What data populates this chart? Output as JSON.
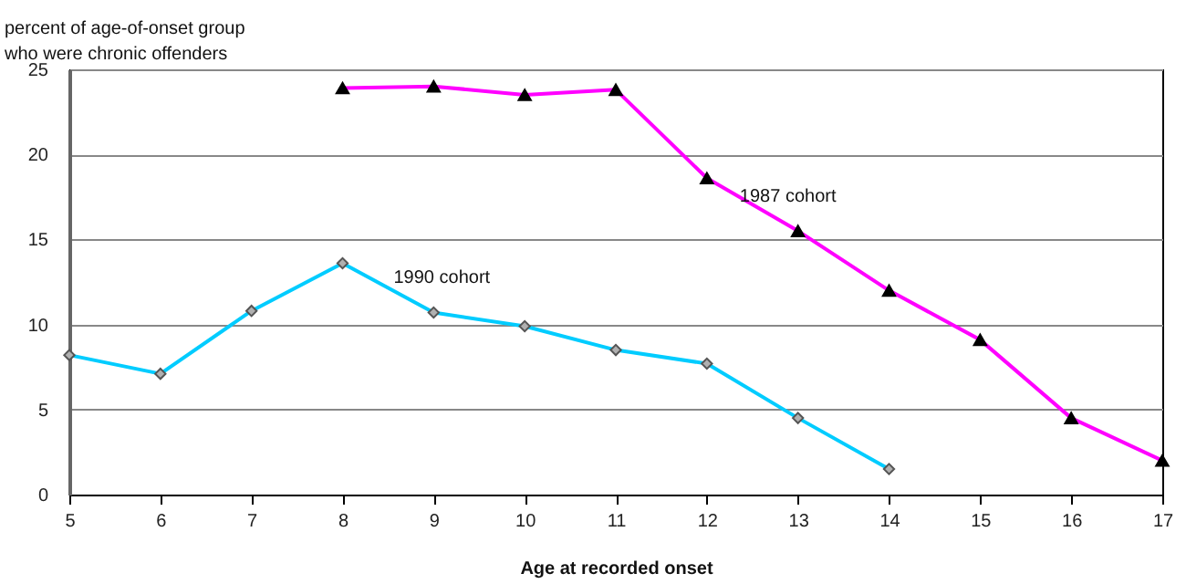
{
  "chart_data": {
    "type": "line",
    "xlabel": "Age at recorded onset",
    "ylabel": "percent of age-of-onset group\nwho were chronic offenders",
    "xlim": [
      5,
      17
    ],
    "xticks": [
      5,
      6,
      7,
      8,
      9,
      10,
      11,
      12,
      13,
      14,
      15,
      16,
      17
    ],
    "ylim": [
      0,
      25
    ],
    "yticks": [
      0,
      5,
      10,
      15,
      20,
      25
    ],
    "grid": "y",
    "series": [
      {
        "name": "1990 cohort",
        "color": "#00ccff",
        "marker": "diamond",
        "x": [
          5,
          6,
          7,
          8,
          9,
          10,
          11,
          12,
          13,
          14
        ],
        "values": [
          8.2,
          7.1,
          10.8,
          13.6,
          10.7,
          9.9,
          8.5,
          7.7,
          4.5,
          1.5
        ]
      },
      {
        "name": "1987 cohort",
        "color": "#ff00ff",
        "marker": "triangle",
        "x": [
          8,
          9,
          10,
          11,
          12,
          13,
          14,
          15,
          16,
          17
        ],
        "values": [
          23.9,
          24.0,
          23.5,
          23.8,
          18.6,
          15.5,
          12.0,
          9.1,
          4.5,
          2.0
        ]
      }
    ]
  }
}
